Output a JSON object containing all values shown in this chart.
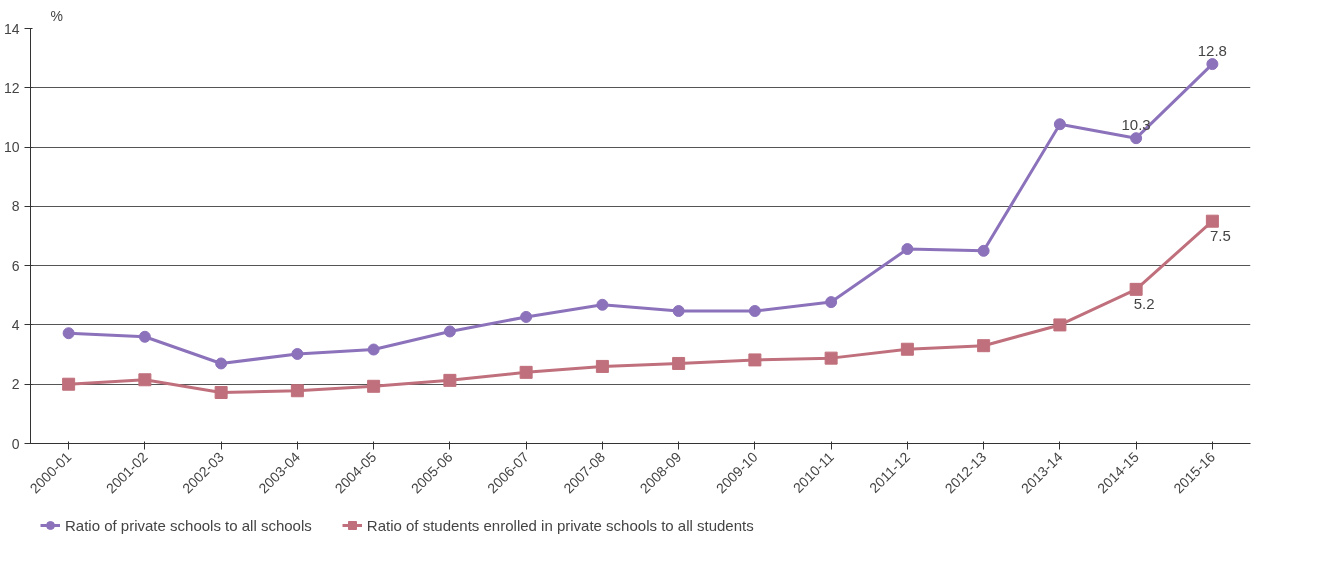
{
  "chart_data": {
    "type": "line",
    "ylabel": "%",
    "categories": [
      "2000-01",
      "2001-02",
      "2002-03",
      "2003-04",
      "2004-05",
      "2005-06",
      "2006-07",
      "2007-08",
      "2008-09",
      "2009-10",
      "2010-11",
      "2011-12",
      "2012-13",
      "2013-14",
      "2014-15",
      "2015-16"
    ],
    "series": [
      {
        "name": "Ratio of private schools to all schools",
        "color": "#8c72bb",
        "marker": "circle",
        "values": [
          3.72,
          3.6,
          2.7,
          3.02,
          3.17,
          3.78,
          4.27,
          4.68,
          4.47,
          4.47,
          4.77,
          6.56,
          6.5,
          10.77,
          10.3,
          12.8
        ],
        "value_labels": [
          null,
          null,
          null,
          null,
          null,
          null,
          null,
          null,
          null,
          null,
          null,
          null,
          null,
          null,
          "10.3",
          "12.8"
        ]
      },
      {
        "name": "Ratio of students enrolled in private schools to all students",
        "color": "#c0707c",
        "marker": "square",
        "values": [
          2.0,
          2.15,
          1.72,
          1.78,
          1.93,
          2.13,
          2.4,
          2.6,
          2.7,
          2.82,
          2.88,
          3.18,
          3.3,
          4.0,
          5.2,
          7.5
        ],
        "value_labels": [
          null,
          null,
          null,
          null,
          null,
          null,
          null,
          null,
          null,
          null,
          null,
          null,
          null,
          null,
          "5.2",
          "7.5"
        ]
      }
    ],
    "ylim": [
      0,
      14
    ],
    "yticks": [
      0,
      2,
      4,
      6,
      8,
      10,
      12,
      14
    ],
    "grid": "y",
    "legend": "bottom left",
    "line_style": "solid"
  }
}
